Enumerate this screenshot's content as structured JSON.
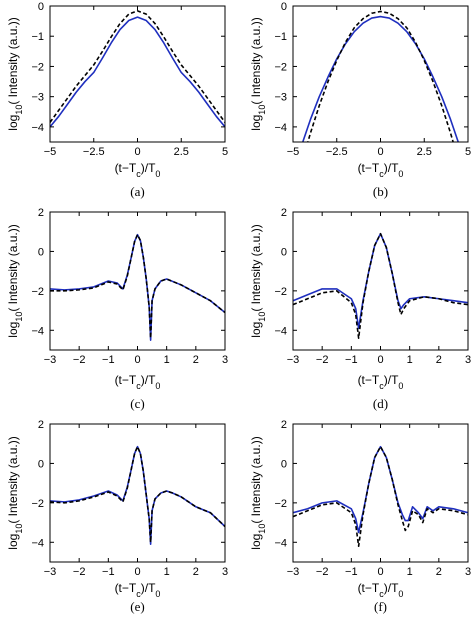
{
  "colors": {
    "solid": "#1f2fbf",
    "dashed": "#000000",
    "axis": "#000000"
  },
  "chart_data": [
    {
      "type": "line",
      "caption": "(a)",
      "xlabel": "(t−T_c)/T_0",
      "ylabel": "log_10( Intensity (a.u.))",
      "xlim": [
        -5,
        5
      ],
      "ylim": [
        -4.5,
        0
      ],
      "xticks": [
        -5,
        -2.5,
        0,
        2.5,
        5
      ],
      "xtick_labels": [
        "−5",
        "−2.5",
        "0",
        "2.5",
        "5"
      ],
      "yticks": [
        0,
        -1,
        -2,
        -3,
        -4
      ],
      "ytick_labels": [
        "0",
        "−1",
        "−2",
        "−3",
        "−4"
      ],
      "grid": false,
      "series": [
        {
          "style": "solid",
          "x": [
            -5,
            -4.5,
            -4,
            -3.5,
            -3,
            -2.5,
            -2,
            -1.5,
            -1,
            -0.5,
            0,
            0.5,
            1,
            1.5,
            2,
            2.5,
            3,
            3.5,
            4,
            4.5,
            5
          ],
          "y": [
            -4.0,
            -3.65,
            -3.25,
            -2.85,
            -2.5,
            -2.2,
            -1.72,
            -1.22,
            -0.78,
            -0.48,
            -0.37,
            -0.48,
            -0.78,
            -1.22,
            -1.72,
            -2.2,
            -2.5,
            -2.85,
            -3.25,
            -3.65,
            -4.0
          ]
        },
        {
          "style": "dashed",
          "x": [
            -5,
            -4.5,
            -4,
            -3.5,
            -3,
            -2.5,
            -2,
            -1.5,
            -1,
            -0.5,
            0,
            0.5,
            1,
            1.5,
            2,
            2.5,
            3,
            3.5,
            4,
            4.5,
            5
          ],
          "y": [
            -3.85,
            -3.45,
            -3.05,
            -2.65,
            -2.3,
            -1.95,
            -1.5,
            -1.02,
            -0.58,
            -0.27,
            -0.16,
            -0.27,
            -0.58,
            -1.02,
            -1.5,
            -1.95,
            -2.3,
            -2.65,
            -3.05,
            -3.45,
            -3.85
          ]
        }
      ]
    },
    {
      "type": "line",
      "caption": "(b)",
      "xlabel": "(t−T_c)/T_0",
      "ylabel": "log_10( Intensity (a.u.))",
      "xlim": [
        -5,
        5
      ],
      "ylim": [
        -4.5,
        0
      ],
      "xticks": [
        -5,
        -2.5,
        0,
        2.5,
        5
      ],
      "xtick_labels": [
        "−5",
        "−2.5",
        "0",
        "2.5",
        "5"
      ],
      "yticks": [
        0,
        -1,
        -2,
        -3,
        -4
      ],
      "ytick_labels": [
        "0",
        "−1",
        "−2",
        "−3",
        "−4"
      ],
      "grid": false,
      "series": [
        {
          "style": "solid",
          "x": [
            -4.5,
            -4,
            -3.5,
            -3,
            -2.5,
            -2,
            -1.5,
            -1,
            -0.5,
            0,
            0.5,
            1,
            1.5,
            2,
            2.5,
            3,
            3.5,
            4,
            4.5
          ],
          "y": [
            -4.6,
            -3.75,
            -3.0,
            -2.35,
            -1.75,
            -1.25,
            -0.85,
            -0.57,
            -0.4,
            -0.35,
            -0.4,
            -0.57,
            -0.85,
            -1.25,
            -1.75,
            -2.35,
            -3.0,
            -3.75,
            -4.6
          ]
        },
        {
          "style": "dashed",
          "x": [
            -4.2,
            -4,
            -3.5,
            -3,
            -2.5,
            -2,
            -1.5,
            -1,
            -0.5,
            0,
            0.5,
            1,
            1.5,
            2,
            2.5,
            3,
            3.5,
            4,
            4.2
          ],
          "y": [
            -4.6,
            -4.2,
            -3.3,
            -2.5,
            -1.8,
            -1.2,
            -0.72,
            -0.42,
            -0.24,
            -0.18,
            -0.24,
            -0.42,
            -0.72,
            -1.2,
            -1.8,
            -2.5,
            -3.3,
            -4.2,
            -4.6
          ]
        }
      ]
    },
    {
      "type": "line",
      "caption": "(c)",
      "xlabel": "(t−T_c)/T_0",
      "ylabel": "log_10( Intensity (a.u.))",
      "xlim": [
        -3,
        3
      ],
      "ylim": [
        -5,
        2
      ],
      "xticks": [
        -3,
        -2,
        -1,
        0,
        1,
        2,
        3
      ],
      "xtick_labels": [
        "−3",
        "−2",
        "−1",
        "0",
        "1",
        "2",
        "3"
      ],
      "yticks": [
        2,
        0,
        -2,
        -4
      ],
      "ytick_labels": [
        "2",
        "0",
        "−2",
        "−4"
      ],
      "grid": false,
      "series": [
        {
          "style": "solid",
          "x": [
            -3,
            -2.5,
            -2,
            -1.5,
            -1,
            -0.7,
            -0.5,
            -0.35,
            -0.2,
            -0.1,
            0,
            0.1,
            0.2,
            0.3,
            0.4,
            0.45,
            0.5,
            0.6,
            0.8,
            1,
            1.5,
            2,
            2.5,
            3
          ],
          "y": [
            -1.9,
            -1.95,
            -1.9,
            -1.8,
            -1.5,
            -1.6,
            -1.9,
            -1.2,
            -0.2,
            0.5,
            0.85,
            0.55,
            -0.3,
            -1.4,
            -2.8,
            -4.5,
            -2.5,
            -1.9,
            -1.5,
            -1.4,
            -1.7,
            -2.1,
            -2.5,
            -3.1
          ]
        },
        {
          "style": "dashed",
          "x": [
            -3,
            -2.5,
            -2,
            -1.5,
            -1,
            -0.7,
            -0.5,
            -0.35,
            -0.2,
            -0.1,
            0,
            0.1,
            0.2,
            0.3,
            0.4,
            0.45,
            0.5,
            0.6,
            0.8,
            1,
            1.5,
            2,
            2.5,
            3
          ],
          "y": [
            -2.0,
            -2.0,
            -1.95,
            -1.85,
            -1.55,
            -1.65,
            -1.95,
            -1.25,
            -0.2,
            0.5,
            0.85,
            0.55,
            -0.3,
            -1.4,
            -2.8,
            -4.4,
            -2.5,
            -1.9,
            -1.5,
            -1.4,
            -1.7,
            -2.1,
            -2.5,
            -3.1
          ]
        }
      ]
    },
    {
      "type": "line",
      "caption": "(d)",
      "xlabel": "(t−T_c)/T_0",
      "ylabel": "log_10( Intensity (a.u.))",
      "xlim": [
        -3,
        3
      ],
      "ylim": [
        -5,
        2
      ],
      "xticks": [
        -3,
        -2,
        -1,
        0,
        1,
        2,
        3
      ],
      "xtick_labels": [
        "−3",
        "−2",
        "−1",
        "0",
        "1",
        "2",
        "3"
      ],
      "yticks": [
        2,
        0,
        -2,
        -4
      ],
      "ytick_labels": [
        "2",
        "0",
        "−2",
        "−4"
      ],
      "grid": false,
      "series": [
        {
          "style": "solid",
          "x": [
            -3,
            -2.5,
            -2,
            -1.5,
            -1,
            -0.85,
            -0.75,
            -0.6,
            -0.4,
            -0.2,
            0,
            0.2,
            0.4,
            0.6,
            0.7,
            0.8,
            1,
            1.5,
            2,
            2.5,
            3
          ],
          "y": [
            -2.5,
            -2.2,
            -1.9,
            -1.9,
            -2.4,
            -2.9,
            -3.9,
            -2.5,
            -1.0,
            0.3,
            0.9,
            0.2,
            -1.1,
            -2.5,
            -2.9,
            -2.7,
            -2.4,
            -2.3,
            -2.4,
            -2.5,
            -2.6
          ]
        },
        {
          "style": "dashed",
          "x": [
            -3,
            -2.5,
            -2,
            -1.5,
            -1,
            -0.85,
            -0.75,
            -0.6,
            -0.4,
            -0.2,
            0,
            0.2,
            0.4,
            0.6,
            0.7,
            0.8,
            1,
            1.5,
            2,
            2.5,
            3
          ],
          "y": [
            -2.7,
            -2.4,
            -2.1,
            -2.0,
            -2.6,
            -3.2,
            -4.4,
            -2.6,
            -1.0,
            0.3,
            0.9,
            0.2,
            -1.1,
            -2.6,
            -3.2,
            -2.9,
            -2.5,
            -2.3,
            -2.4,
            -2.6,
            -2.7
          ]
        }
      ]
    },
    {
      "type": "line",
      "caption": "(e)",
      "xlabel": "(t−T_c)/T_0",
      "ylabel": "log_10( Intensity (a.u.))",
      "xlim": [
        -3,
        3
      ],
      "ylim": [
        -5,
        2
      ],
      "xticks": [
        -3,
        -2,
        -1,
        0,
        1,
        2,
        3
      ],
      "xtick_labels": [
        "−3",
        "−2",
        "−1",
        "0",
        "1",
        "2",
        "3"
      ],
      "yticks": [
        2,
        0,
        -2,
        -4
      ],
      "ytick_labels": [
        "2",
        "0",
        "−2",
        "−4"
      ],
      "grid": false,
      "series": [
        {
          "style": "solid",
          "x": [
            -3,
            -2.5,
            -2,
            -1.5,
            -1,
            -0.7,
            -0.5,
            -0.35,
            -0.2,
            -0.1,
            0,
            0.1,
            0.2,
            0.3,
            0.4,
            0.45,
            0.5,
            0.6,
            0.8,
            1,
            1.2,
            1.5,
            2,
            2.5,
            3
          ],
          "y": [
            -1.9,
            -1.95,
            -1.85,
            -1.65,
            -1.4,
            -1.6,
            -1.9,
            -1.2,
            -0.2,
            0.5,
            0.85,
            0.5,
            -0.4,
            -1.6,
            -2.8,
            -4.1,
            -2.4,
            -1.8,
            -1.5,
            -1.4,
            -1.5,
            -1.7,
            -2.2,
            -2.5,
            -3.2
          ]
        },
        {
          "style": "dashed",
          "x": [
            -3,
            -2.5,
            -2,
            -1.5,
            -1,
            -0.7,
            -0.5,
            -0.35,
            -0.2,
            -0.1,
            0,
            0.1,
            0.2,
            0.3,
            0.4,
            0.45,
            0.5,
            0.6,
            0.8,
            1,
            1.2,
            1.5,
            2,
            2.5,
            3
          ],
          "y": [
            -1.95,
            -2.0,
            -1.9,
            -1.7,
            -1.45,
            -1.65,
            -1.95,
            -1.25,
            -0.2,
            0.5,
            0.85,
            0.5,
            -0.4,
            -1.6,
            -2.8,
            -4.0,
            -2.4,
            -1.8,
            -1.5,
            -1.4,
            -1.5,
            -1.7,
            -2.2,
            -2.5,
            -3.2
          ]
        }
      ]
    },
    {
      "type": "line",
      "caption": "(f)",
      "xlabel": "(t−T_c)/T_0",
      "ylabel": "log_10( Intensity (a.u.))",
      "xlim": [
        -3,
        3
      ],
      "ylim": [
        -5,
        2
      ],
      "xticks": [
        -3,
        -2,
        -1,
        0,
        1,
        2,
        3
      ],
      "xtick_labels": [
        "−3",
        "−2",
        "−1",
        "0",
        "1",
        "2",
        "3"
      ],
      "yticks": [
        2,
        0,
        -2,
        -4
      ],
      "ytick_labels": [
        "2",
        "0",
        "−2",
        "−4"
      ],
      "grid": false,
      "series": [
        {
          "style": "solid",
          "x": [
            -3,
            -2.5,
            -2,
            -1.5,
            -1,
            -0.85,
            -0.75,
            -0.6,
            -0.4,
            -0.2,
            0,
            0.2,
            0.4,
            0.6,
            0.75,
            0.85,
            0.95,
            1.1,
            1.3,
            1.45,
            1.6,
            1.8,
            2,
            2.5,
            3
          ],
          "y": [
            -2.5,
            -2.3,
            -2.0,
            -1.9,
            -2.3,
            -2.8,
            -3.5,
            -2.5,
            -1.0,
            0.3,
            0.85,
            0.3,
            -0.8,
            -2.0,
            -2.6,
            -2.9,
            -2.9,
            -2.2,
            -2.5,
            -2.8,
            -2.2,
            -2.4,
            -2.2,
            -2.3,
            -2.5
          ]
        },
        {
          "style": "dashed",
          "x": [
            -3,
            -2.5,
            -2,
            -1.5,
            -1,
            -0.85,
            -0.75,
            -0.6,
            -0.4,
            -0.2,
            0,
            0.2,
            0.4,
            0.6,
            0.75,
            0.85,
            0.95,
            1.1,
            1.3,
            1.45,
            1.6,
            1.8,
            2,
            2.5,
            3
          ],
          "y": [
            -2.7,
            -2.4,
            -2.1,
            -2.0,
            -2.5,
            -3.1,
            -4.2,
            -2.6,
            -1.0,
            0.3,
            0.85,
            0.3,
            -0.8,
            -2.1,
            -2.9,
            -3.4,
            -3.2,
            -2.4,
            -2.6,
            -3.0,
            -2.3,
            -2.5,
            -2.3,
            -2.4,
            -2.6
          ]
        }
      ]
    }
  ]
}
